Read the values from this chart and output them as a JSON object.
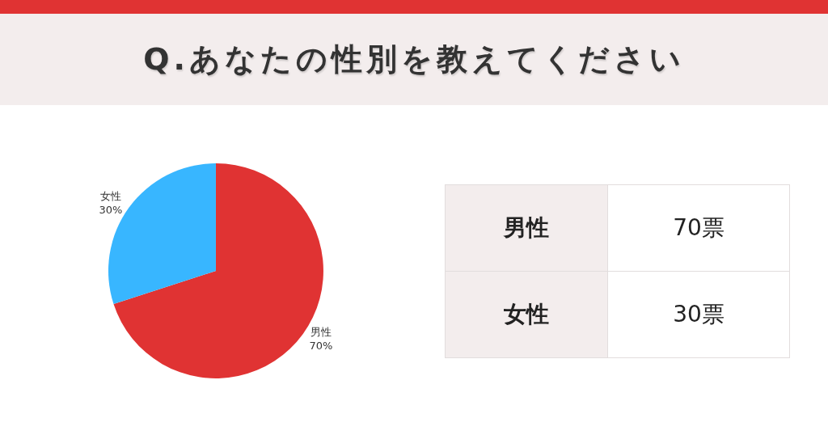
{
  "chart_data": {
    "type": "pie",
    "title": "Q.あなたの性別を教えてください",
    "categories": [
      "男性",
      "女性"
    ],
    "values": [
      70,
      30
    ],
    "colors": [
      "#e03333",
      "#38b6ff"
    ],
    "value_labels": [
      "70%",
      "30%"
    ],
    "annotations": [
      "70票",
      "30票"
    ]
  }
}
